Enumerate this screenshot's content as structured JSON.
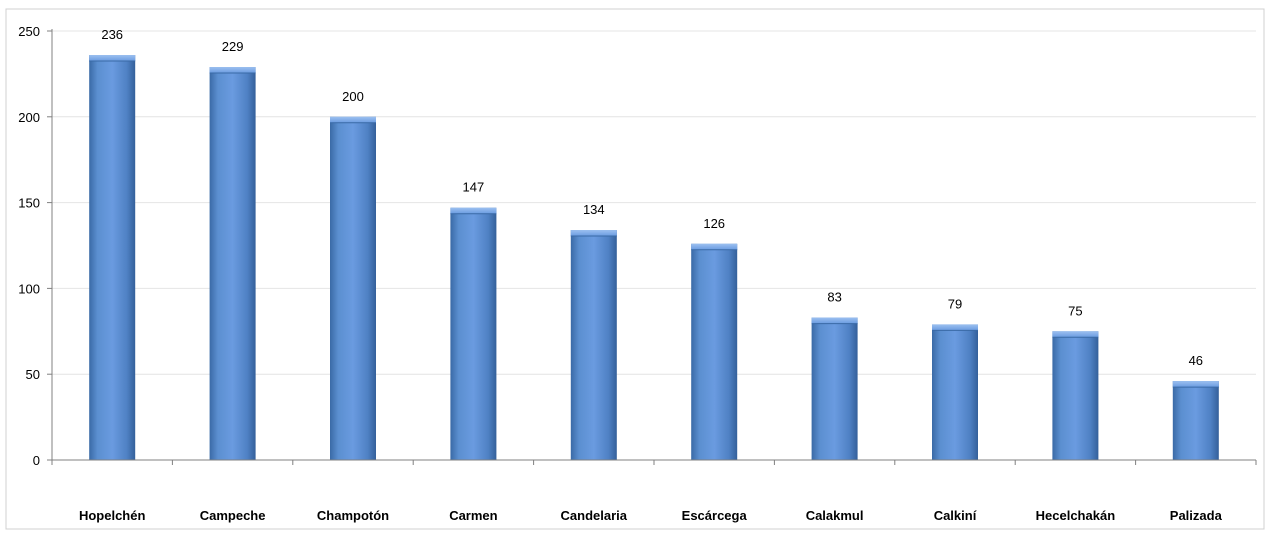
{
  "chart_data": {
    "type": "bar",
    "title": "",
    "xlabel": "",
    "ylabel": "",
    "categories": [
      "Hopelchén",
      "Campeche",
      "Champotón",
      "Carmen",
      "Candelaria",
      "Escárcega",
      "Calakmul",
      "Calkiní",
      "Hecelchakán",
      "Palizada"
    ],
    "values": [
      236,
      229,
      200,
      147,
      134,
      126,
      83,
      79,
      75,
      46
    ],
    "ylim": [
      0,
      250
    ],
    "yticks": [
      0,
      50,
      100,
      150,
      200,
      250
    ],
    "grid": true,
    "legend": "none",
    "bar_color": "#4f81bd"
  }
}
